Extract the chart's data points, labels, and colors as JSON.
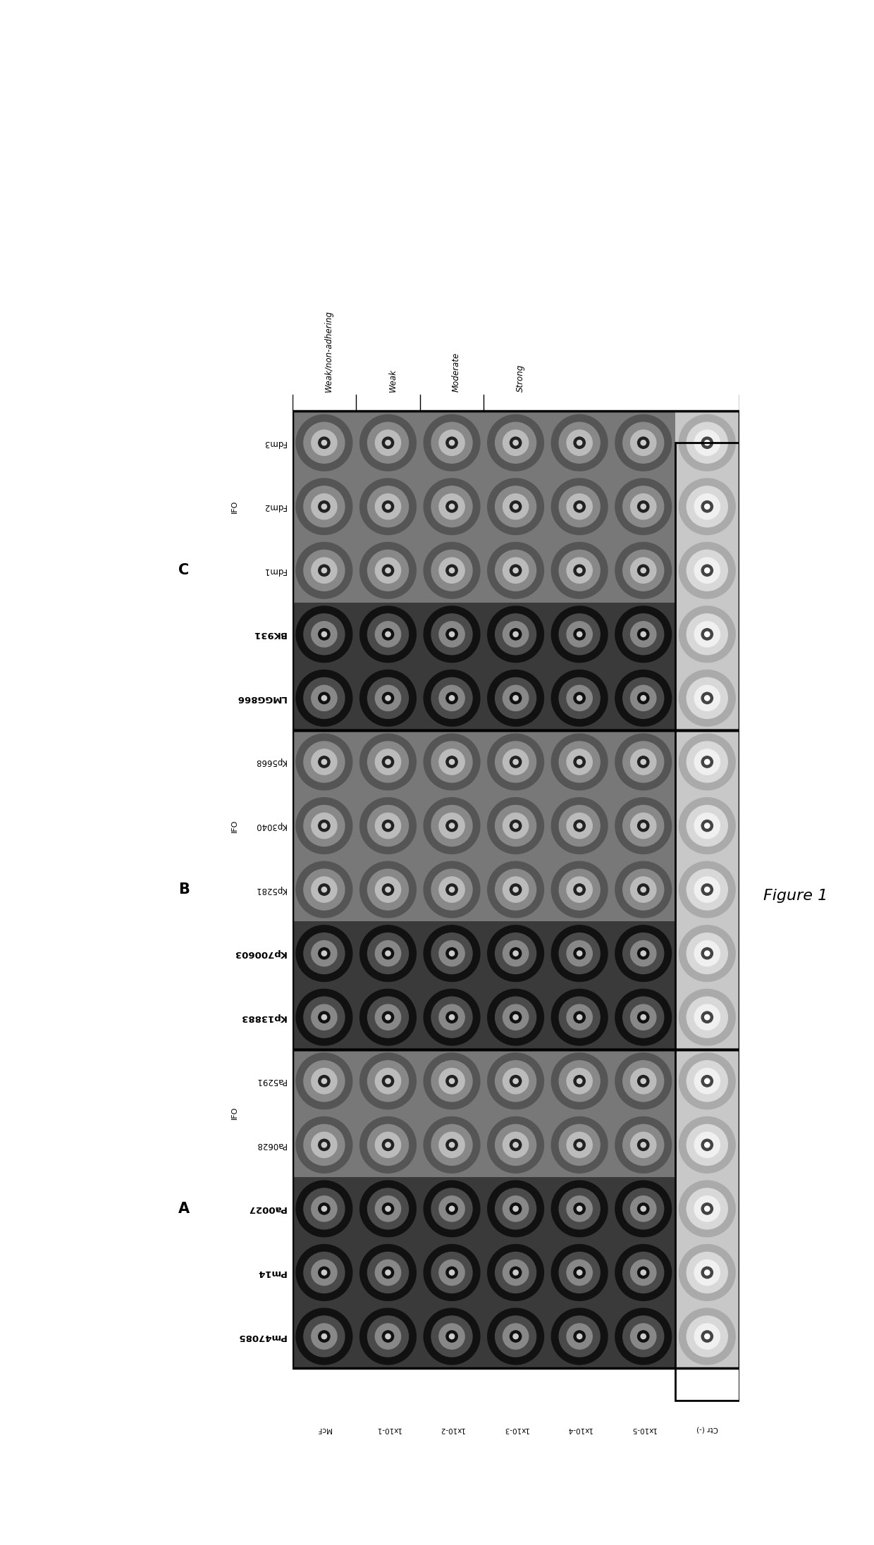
{
  "title": "Figure 1",
  "background_color": "#ffffff",
  "figure_size": [
    12.4,
    21.92
  ],
  "column_headers": [
    "Weak/non-adhering",
    "Weak",
    "Moderate",
    "Strong"
  ],
  "x_labels": [
    "McF",
    "1x10-1",
    "1x10-2",
    "1x10-3",
    "1x10-4",
    "1x10-5",
    "Ctr (-)"
  ],
  "x_superscripts": [
    "",
    "-1",
    "-2",
    "-3",
    "-4",
    "-5",
    ""
  ],
  "x_bases": [
    "McF",
    "1x10",
    "1x10",
    "1x10",
    "1x10",
    "1x10",
    "Ctr (-)"
  ],
  "display_groups": [
    {
      "label": "C",
      "ifo_label": "IFO",
      "rows": [
        "Fdm3",
        "Fdm2",
        "Fdm1",
        "BK931",
        "LMGG866"
      ],
      "bold_rows": [
        "LMGG866",
        "BK931"
      ],
      "ifo_rows": [
        "Fdm3",
        "Fdm2",
        "Fdm1"
      ],
      "well_darkness": [
        [
          0.55,
          0.55,
          0.55,
          0.55,
          0.55,
          0.55,
          0.85
        ],
        [
          0.55,
          0.55,
          0.55,
          0.55,
          0.55,
          0.55,
          0.85
        ],
        [
          0.55,
          0.55,
          0.55,
          0.55,
          0.55,
          0.55,
          0.85
        ],
        [
          0.3,
          0.3,
          0.3,
          0.3,
          0.3,
          0.3,
          0.85
        ],
        [
          0.3,
          0.3,
          0.3,
          0.3,
          0.3,
          0.3,
          0.85
        ]
      ]
    },
    {
      "label": "B",
      "ifo_label": "IFO",
      "rows": [
        "Kp5668",
        "Kp3040",
        "Kp5281",
        "Kp700603",
        "Kp13883"
      ],
      "bold_rows": [
        "Kp13883",
        "Kp700603"
      ],
      "ifo_rows": [
        "Kp5668",
        "Kp3040",
        "Kp5281"
      ],
      "well_darkness": [
        [
          0.55,
          0.55,
          0.55,
          0.55,
          0.55,
          0.55,
          0.88
        ],
        [
          0.55,
          0.55,
          0.55,
          0.55,
          0.55,
          0.55,
          0.88
        ],
        [
          0.55,
          0.55,
          0.55,
          0.55,
          0.55,
          0.55,
          0.88
        ],
        [
          0.3,
          0.3,
          0.3,
          0.3,
          0.3,
          0.3,
          0.88
        ],
        [
          0.3,
          0.3,
          0.3,
          0.3,
          0.3,
          0.3,
          0.88
        ]
      ]
    },
    {
      "label": "A",
      "ifo_label": "IFO",
      "rows": [
        "Pa5291",
        "Pa0628",
        "Pa0027",
        "Pm14",
        "Pm47085"
      ],
      "bold_rows": [
        "Pm47085",
        "Pm14",
        "Pa0027"
      ],
      "ifo_rows": [
        "Pa5291",
        "Pa0628"
      ],
      "well_darkness": [
        [
          0.55,
          0.55,
          0.55,
          0.55,
          0.55,
          0.55,
          0.88
        ],
        [
          0.55,
          0.55,
          0.55,
          0.55,
          0.55,
          0.55,
          0.88
        ],
        [
          0.3,
          0.3,
          0.3,
          0.3,
          0.3,
          0.3,
          0.88
        ],
        [
          0.3,
          0.3,
          0.3,
          0.3,
          0.3,
          0.3,
          0.88
        ],
        [
          0.3,
          0.3,
          0.3,
          0.3,
          0.3,
          0.3,
          0.88
        ]
      ]
    }
  ],
  "num_cols": 7,
  "plate_bg_dark": "#3a3a3a",
  "plate_bg_light": "#c8c8c8",
  "ctr_col_color": "#d0d0d0",
  "well_outer_dark": "#1a1a1a",
  "well_mid_dark": "#555555",
  "well_inner_dark": "#999999",
  "well_outer_light": "#888888",
  "well_mid_light": "#cccccc",
  "well_inner_light": "#e8e8e8"
}
